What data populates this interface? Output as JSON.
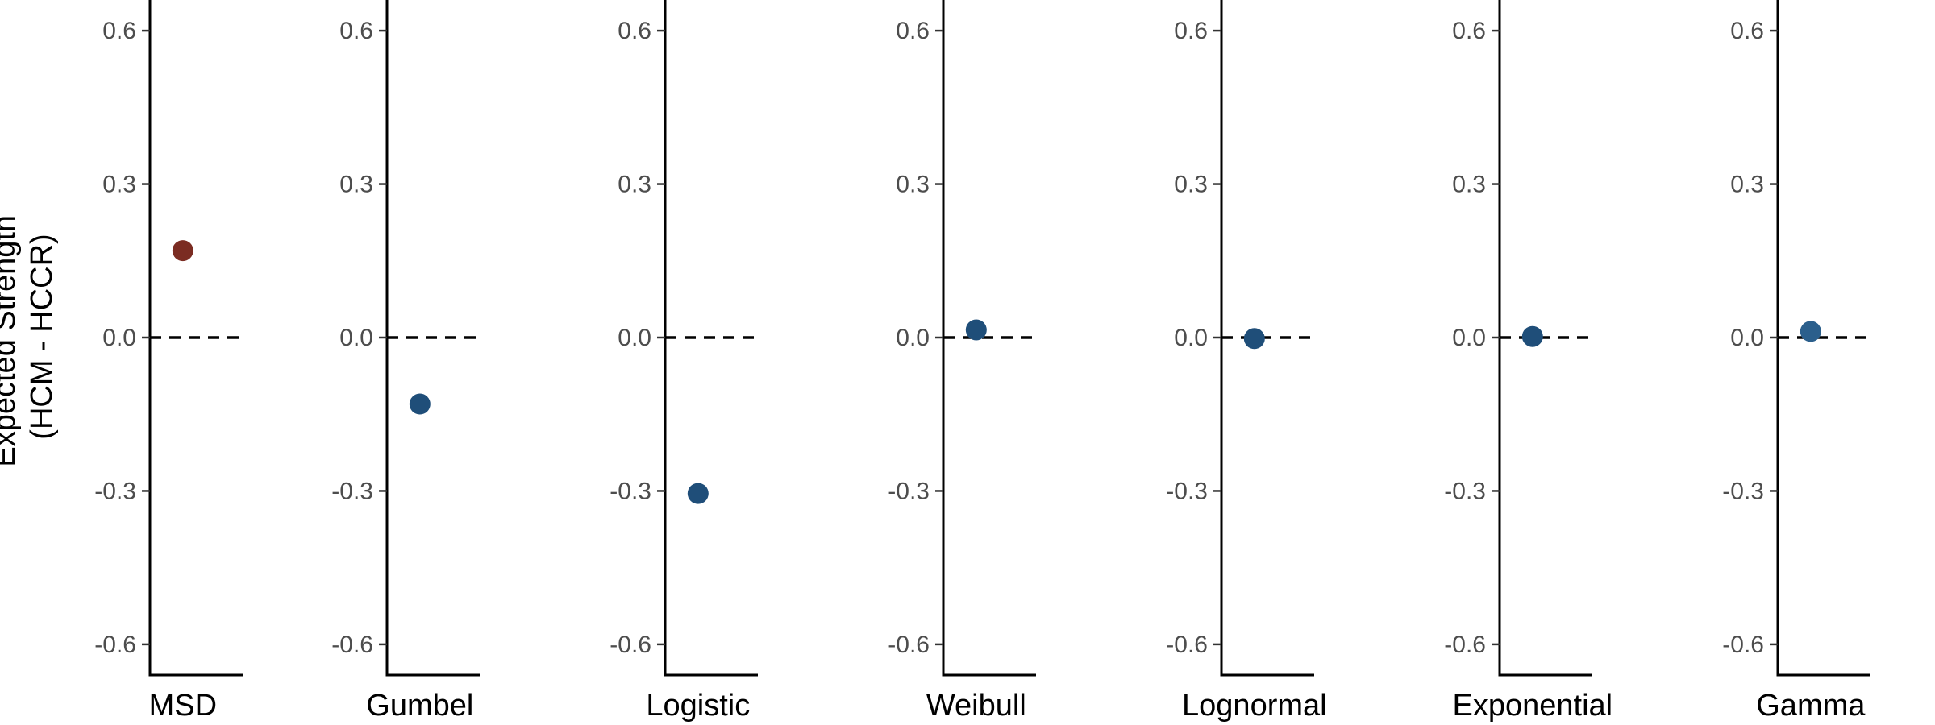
{
  "chart_data": {
    "type": "scatter",
    "ylabel_lines": [
      "Expected Strength",
      "(HCM - HCCR)"
    ],
    "ylim": [
      -0.66,
      0.66
    ],
    "yticks": [
      -0.6,
      -0.3,
      0.0,
      0.3,
      0.6
    ],
    "ytick_labels": [
      "-0.6",
      "-0.3",
      "0.0",
      "0.3",
      "0.6"
    ],
    "reference_line": {
      "y": 0.0,
      "style": "dashed"
    },
    "grid": false,
    "legend": "none",
    "panels": [
      {
        "label": "MSD",
        "value": 0.17,
        "color": "#7b2c22"
      },
      {
        "label": "Gumbel",
        "value": -0.13,
        "color": "#1f4e79"
      },
      {
        "label": "Logistic",
        "value": -0.305,
        "color": "#1f4e79"
      },
      {
        "label": "Weibull",
        "value": 0.015,
        "color": "#1f4e79"
      },
      {
        "label": "Lognormal",
        "value": -0.002,
        "color": "#1f4e79"
      },
      {
        "label": "Exponential",
        "value": 0.002,
        "color": "#1f4e79"
      },
      {
        "label": "Gamma",
        "value": 0.012,
        "color": "#2b5f8c"
      }
    ]
  }
}
